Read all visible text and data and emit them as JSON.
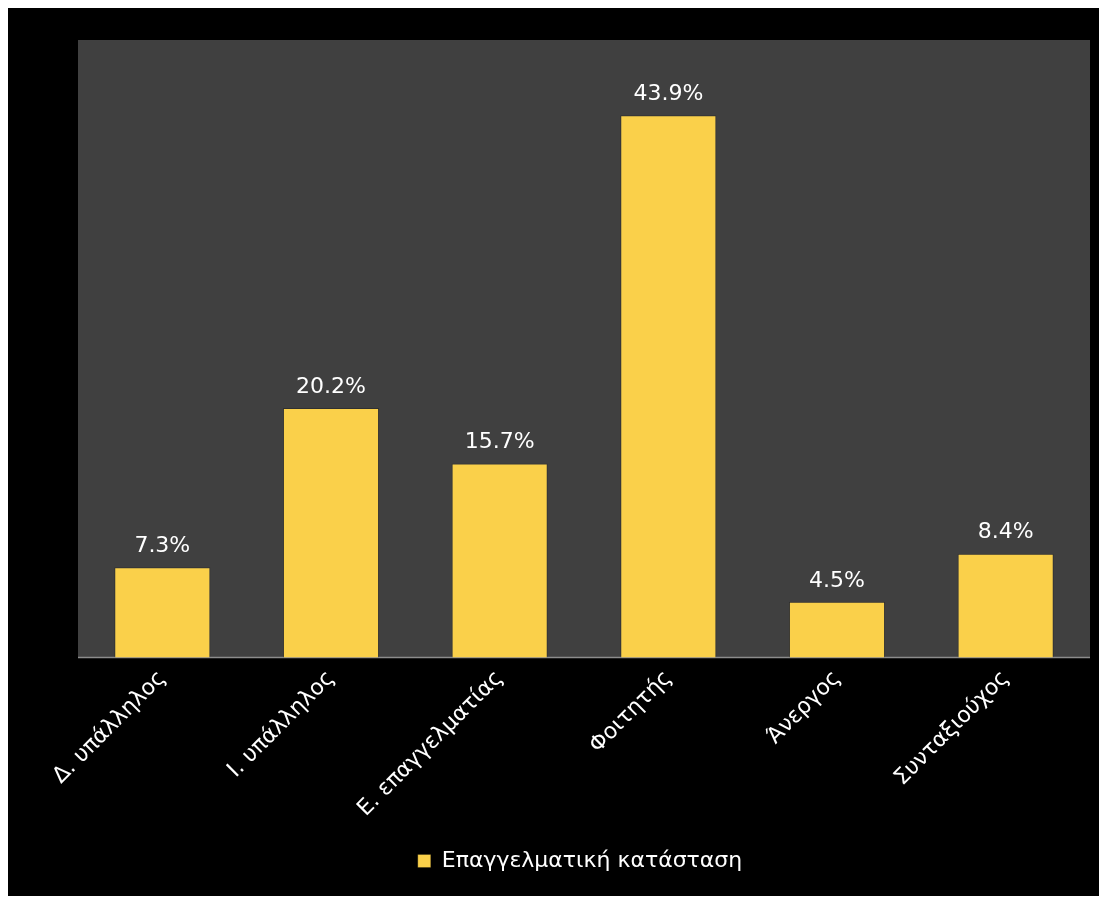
{
  "chart_data": {
    "type": "bar",
    "categories": [
      "Δ. υπάλληλος",
      "Ι. υπάλληλος",
      "Ε. επαγγελματίας",
      "Φοιτητής",
      "Άνεργος",
      "Συνταξιούχος"
    ],
    "series": [
      {
        "name": "Επαγγελματική κατάσταση",
        "color": "#fad04a",
        "values": [
          7.3,
          20.2,
          15.7,
          43.9,
          4.5,
          8.4
        ],
        "value_labels": [
          "7.3%",
          "20.2%",
          "15.7%",
          "43.9%",
          "4.5%",
          "8.4%"
        ]
      }
    ],
    "ylim": [
      0,
      50
    ],
    "tick_labels": "x",
    "grid": false,
    "legend": "bottom"
  }
}
